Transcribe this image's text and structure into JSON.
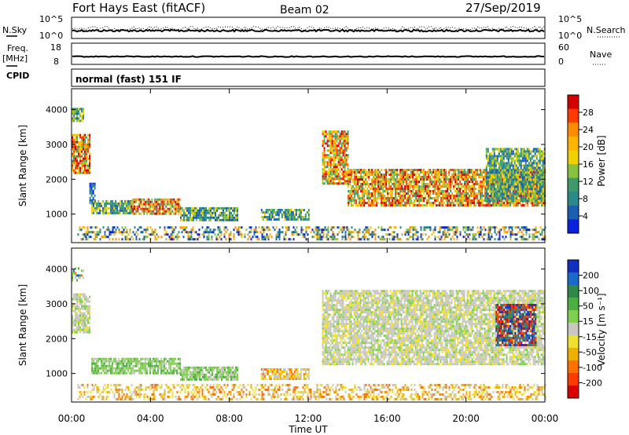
{
  "header": {
    "title": "Fort Hays East (fitACF)",
    "beam": "Beam 02",
    "date": "27/Sep/2019"
  },
  "strip_panels": {
    "nsky": {
      "left_label": "N.Sky",
      "left_ticks": [
        "10^5",
        "10^0"
      ],
      "right_ticks": [
        "10^5",
        "10^0"
      ],
      "right_label": "N.Search"
    },
    "freq": {
      "left_label_line1": "Freq.",
      "left_label_line2": "[MHz]",
      "left_ticks": [
        "18",
        "8"
      ],
      "right_ticks": [
        "60",
        "0"
      ],
      "right_label": "Nave"
    },
    "cpid": {
      "label": "CPID",
      "value": "normal (fast) 151 IF"
    }
  },
  "chart_data": [
    {
      "type": "heatmap",
      "name": "power",
      "ylabel": "Slant Range [km]",
      "xlabel": "Time UT",
      "xlim": [
        0,
        24
      ],
      "ylim": [
        180,
        4600
      ],
      "y_ticks": [
        "1000",
        "2000",
        "3000",
        "4000"
      ],
      "colorbar": {
        "label": "Power [dB]",
        "ticks": [
          "28",
          "24",
          "20",
          "16",
          "12",
          "8",
          "4"
        ],
        "colors": [
          "#d40000",
          "#ff3a00",
          "#ff8c00",
          "#ffb400",
          "#f0d000",
          "#88c040",
          "#3f9a6a",
          "#2a8a8a",
          "#1b5fb0",
          "#0a22e0"
        ]
      },
      "regions": [
        {
          "t0": 0.0,
          "t1": 0.6,
          "r0": 3700,
          "r1": 4050,
          "level": "mid"
        },
        {
          "t0": 0.0,
          "t1": 0.9,
          "r0": 2150,
          "r1": 3300,
          "level": "high"
        },
        {
          "t0": 0.9,
          "t1": 1.2,
          "r0": 1300,
          "r1": 1900,
          "level": "low"
        },
        {
          "t0": 1.0,
          "t1": 3.0,
          "r0": 1050,
          "r1": 1400,
          "level": "mid"
        },
        {
          "t0": 3.0,
          "t1": 5.5,
          "r0": 1000,
          "r1": 1450,
          "level": "high"
        },
        {
          "t0": 5.5,
          "t1": 8.4,
          "r0": 800,
          "r1": 1200,
          "level": "mid"
        },
        {
          "t0": 9.6,
          "t1": 12.0,
          "r0": 850,
          "r1": 1150,
          "level": "mid"
        },
        {
          "t0": 12.7,
          "t1": 14.0,
          "r0": 1900,
          "r1": 3400,
          "level": "high"
        },
        {
          "t0": 14.0,
          "t1": 24.0,
          "r0": 1250,
          "r1": 2300,
          "level": "high"
        },
        {
          "t0": 21.0,
          "t1": 24.0,
          "r0": 1400,
          "r1": 2900,
          "level": "mid"
        },
        {
          "t0": 0.3,
          "t1": 24.0,
          "r0": 250,
          "r1": 650,
          "level": "scatter"
        }
      ]
    },
    {
      "type": "heatmap",
      "name": "velocity",
      "ylabel": "Slant Range [km]",
      "xlabel": "Time UT",
      "xlim": [
        0,
        24
      ],
      "ylim": [
        180,
        4600
      ],
      "y_ticks": [
        "1000",
        "2000",
        "3000",
        "4000"
      ],
      "x_ticks": [
        "00:00",
        "04:00",
        "08:00",
        "12:00",
        "16:00",
        "20:00",
        "00:00"
      ],
      "colorbar": {
        "label": "Velocity [m s⁻¹]",
        "ticks": [
          "200",
          "100",
          "50",
          "15",
          "-15",
          "-50",
          "-100",
          "-200"
        ],
        "colors": [
          "#1030c0",
          "#1c6ac8",
          "#2f8a4a",
          "#4cb040",
          "#80d050",
          "#c8c8c0",
          "#f0e030",
          "#f0b000",
          "#ff7000",
          "#ff3a00",
          "#dd0000"
        ]
      },
      "regions": [
        {
          "t0": 0.0,
          "t1": 0.6,
          "r0": 3700,
          "r1": 4050,
          "level": "mixed"
        },
        {
          "t0": 0.0,
          "t1": 0.9,
          "r0": 2150,
          "r1": 3300,
          "level": "gray"
        },
        {
          "t0": 1.0,
          "t1": 5.5,
          "r0": 1000,
          "r1": 1450,
          "level": "green"
        },
        {
          "t0": 5.5,
          "t1": 8.4,
          "r0": 800,
          "r1": 1200,
          "level": "green"
        },
        {
          "t0": 9.6,
          "t1": 12.0,
          "r0": 850,
          "r1": 1150,
          "level": "orange"
        },
        {
          "t0": 12.7,
          "t1": 24.0,
          "r0": 1250,
          "r1": 3400,
          "level": "gray"
        },
        {
          "t0": 21.5,
          "t1": 23.5,
          "r0": 1800,
          "r1": 3000,
          "level": "blue"
        },
        {
          "t0": 0.3,
          "t1": 24.0,
          "r0": 250,
          "r1": 700,
          "level": "yellow"
        }
      ]
    }
  ]
}
